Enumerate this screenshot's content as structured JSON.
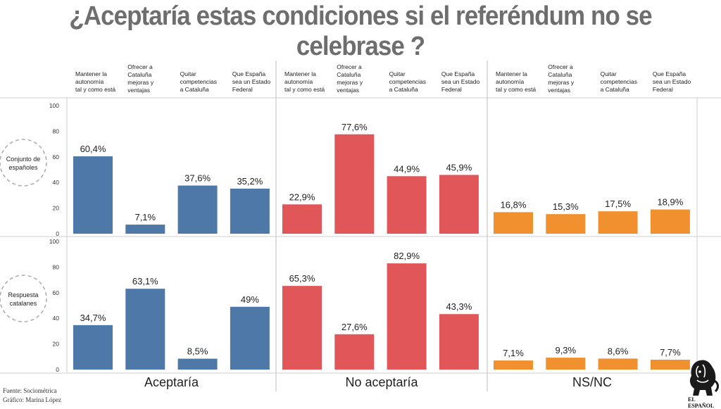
{
  "title": "¿Aceptaría estas condiciones si el referéndum no se celebrase ?",
  "source": "Fuente: Sociométrica",
  "author": "Gráfico: Marina López",
  "logo_text": "EL ESPAÑOL",
  "colors": {
    "aceptaria": "#4e78a8",
    "no_aceptaria": "#e05659",
    "nsnc": "#f0902f"
  },
  "chart_data": {
    "type": "bar",
    "title": "¿Aceptaría estas condiciones si el referéndum no se celebrase ?",
    "categories": [
      [
        "Mantener la",
        "autonomía",
        "tal y como está"
      ],
      [
        "Ofrecer a",
        "Cataluña",
        "mejoras y",
        "ventajas"
      ],
      [
        "Quitar",
        "competencias",
        "a Cataluña"
      ],
      [
        "Que España",
        "sea un Estado",
        "Federal"
      ]
    ],
    "groups": [
      "Aceptaría",
      "No aceptaría",
      "NS/NC"
    ],
    "rows": [
      {
        "label": [
          "Conjunto de",
          "españoles"
        ],
        "series": [
          {
            "name": "Aceptaría",
            "values": [
              60.4,
              7.1,
              37.6,
              35.2
            ],
            "labels": [
              "60,4%",
              "7,1%",
              "37,6%",
              "35,2%"
            ]
          },
          {
            "name": "No aceptaría",
            "values": [
              22.9,
              77.6,
              44.9,
              45.9
            ],
            "labels": [
              "22,9%",
              "77,6%",
              "44,9%",
              "45,9%"
            ]
          },
          {
            "name": "NS/NC",
            "values": [
              16.8,
              15.3,
              17.5,
              18.9
            ],
            "labels": [
              "16,8%",
              "15,3%",
              "17,5%",
              "18,9%"
            ]
          }
        ]
      },
      {
        "label": [
          "Respuesta",
          "catalanes"
        ],
        "series": [
          {
            "name": "Aceptaría",
            "values": [
              34.7,
              63.1,
              8.5,
              49
            ],
            "labels": [
              "34,7%",
              "63,1%",
              "8,5%",
              "49%"
            ]
          },
          {
            "name": "No aceptaría",
            "values": [
              65.3,
              27.6,
              82.9,
              43.3
            ],
            "labels": [
              "65,3%",
              "27,6%",
              "82,9%",
              "43,3%"
            ]
          },
          {
            "name": "NS/NC",
            "values": [
              7.1,
              9.3,
              8.6,
              7.7
            ],
            "labels": [
              "7,1%",
              "9,3%",
              "8,6%",
              "7,7%"
            ]
          }
        ]
      }
    ],
    "yticks": [
      0,
      20,
      40,
      60,
      80,
      100
    ],
    "ylim": [
      0,
      100
    ],
    "grid": false
  }
}
